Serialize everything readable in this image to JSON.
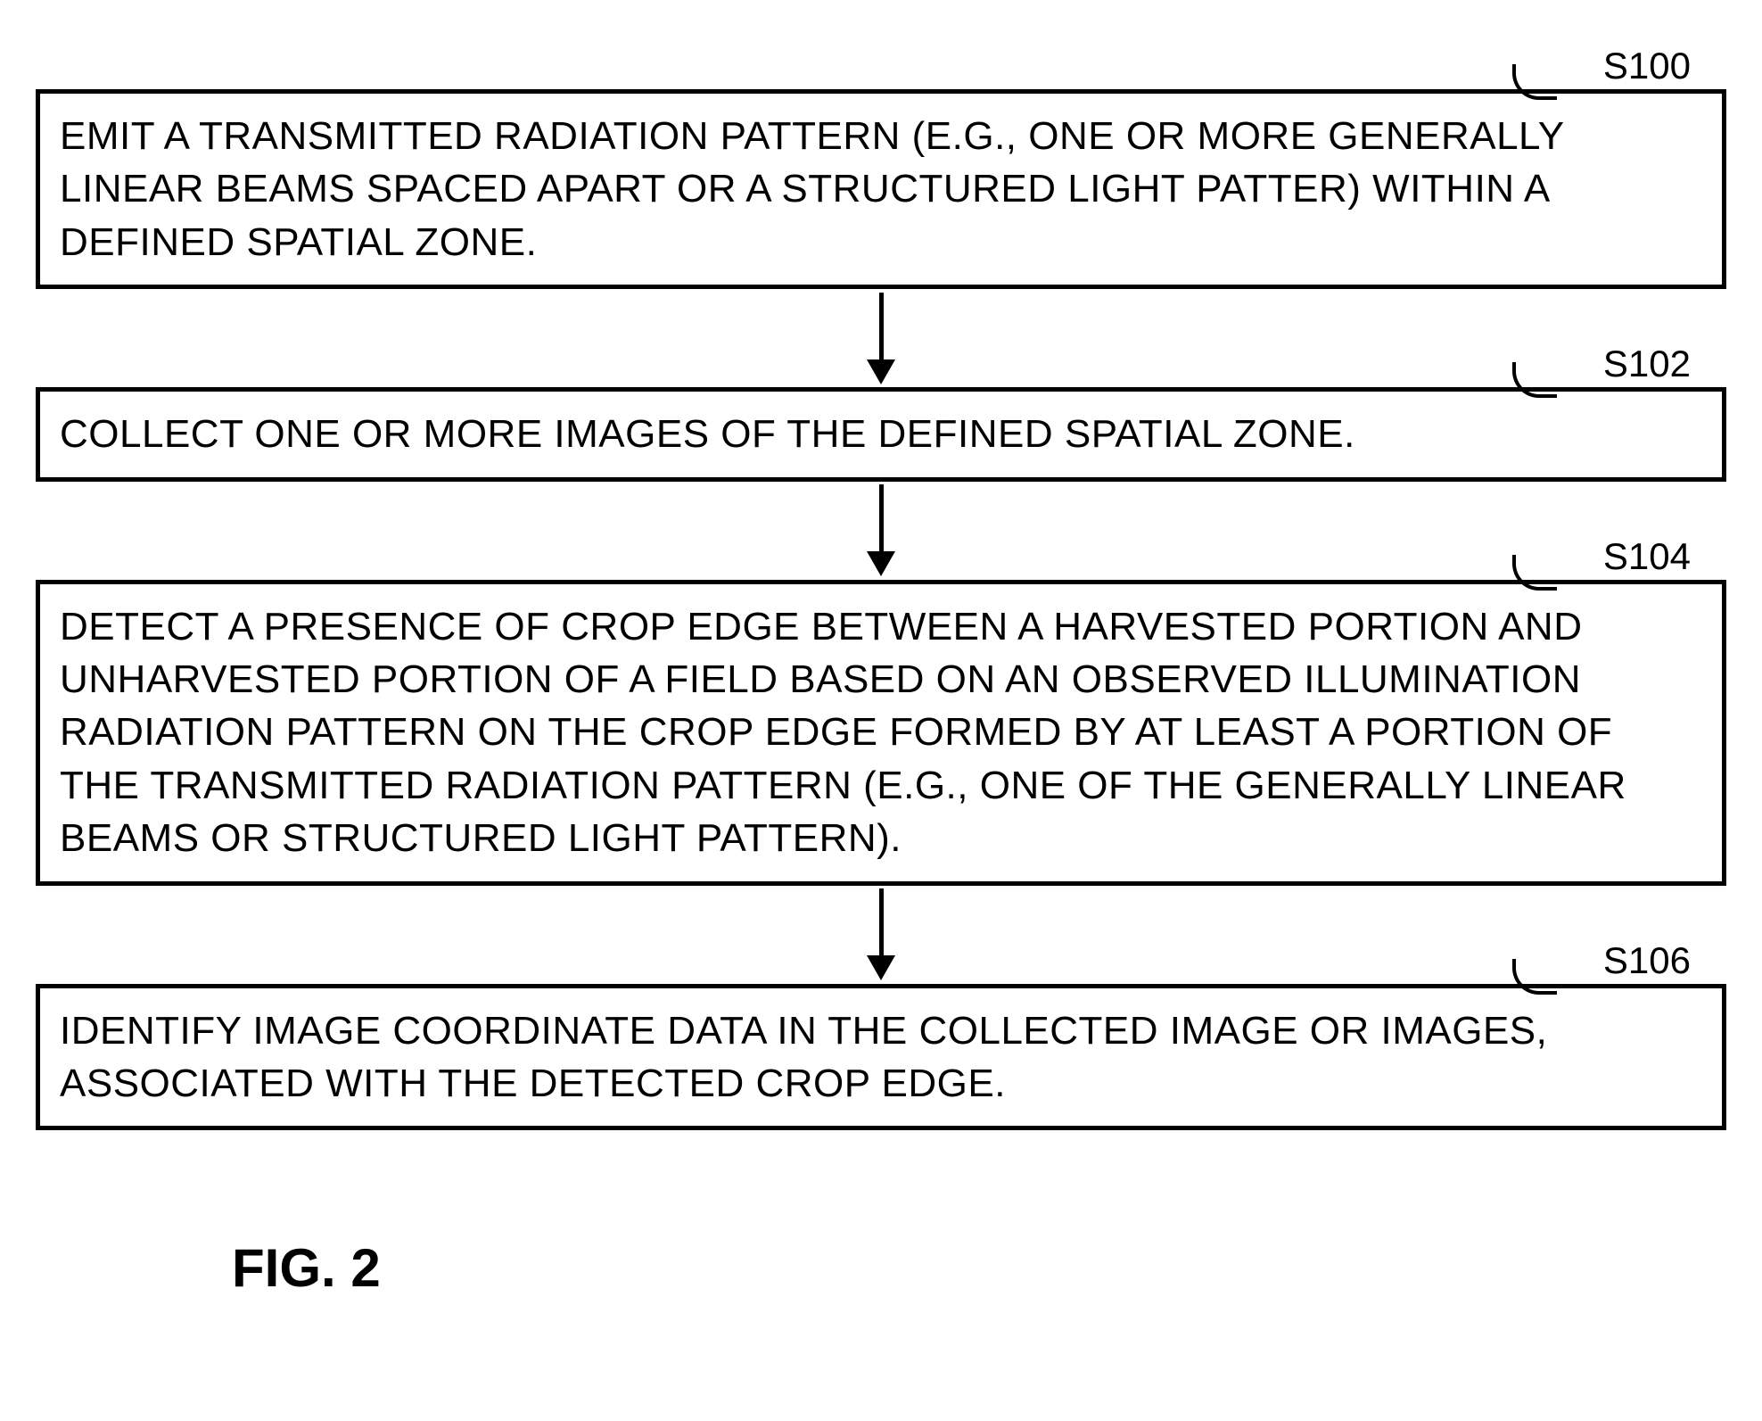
{
  "flowchart": {
    "steps": [
      {
        "label": "S100",
        "text": "EMIT A TRANSMITTED RADIATION PATTERN (E.G., ONE OR MORE GENERALLY LINEAR BEAMS SPACED APART OR A STRUCTURED LIGHT PATTER) WITHIN A DEFINED SPATIAL ZONE."
      },
      {
        "label": "S102",
        "text": "COLLECT ONE OR MORE IMAGES OF THE DEFINED SPATIAL ZONE."
      },
      {
        "label": "S104",
        "text": "DETECT A PRESENCE OF CROP EDGE BETWEEN A HARVESTED PORTION AND UNHARVESTED PORTION OF A FIELD BASED ON AN OBSERVED ILLUMINATION RADIATION PATTERN ON THE CROP EDGE FORMED BY AT LEAST A PORTION OF THE TRANSMITTED RADIATION PATTERN (E.G., ONE OF THE GENERALLY LINEAR BEAMS OR STRUCTURED LIGHT PATTERN)."
      },
      {
        "label": "S106",
        "text": "IDENTIFY IMAGE COORDINATE DATA IN THE COLLECTED IMAGE OR IMAGES, ASSOCIATED WITH THE DETECTED CROP EDGE."
      }
    ],
    "figure_label": "FIG. 2",
    "colors": {
      "background": "#ffffff",
      "border": "#000000",
      "text": "#000000",
      "arrow": "#000000"
    },
    "border_width": 5,
    "font_size_text": 44,
    "font_size_label": 42,
    "font_size_figure": 60
  }
}
